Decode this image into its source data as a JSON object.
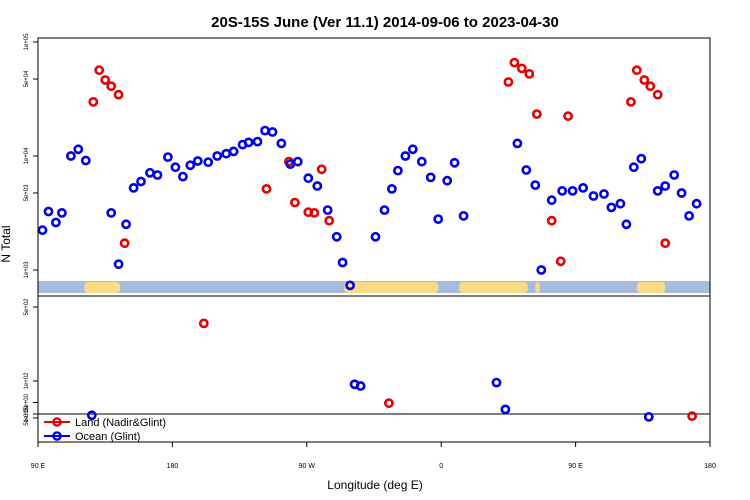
{
  "chart_data": {
    "type": "scatter",
    "title": "20S-15S June (Ver 11.1)   2014-09-06 to 2023-04-30",
    "xlabel": "Longitude (deg E)",
    "ylabel": "N Total",
    "x_ticks": [
      {
        "value": 90,
        "label": "90 E"
      },
      {
        "value": 180,
        "label": "180"
      },
      {
        "value": 270,
        "label": "90 W"
      },
      {
        "value": 360,
        "label": "0"
      },
      {
        "value": 450,
        "label": "90 E"
      },
      {
        "value": 540,
        "label": "180"
      }
    ],
    "xlim": [
      90,
      540
    ],
    "y_scale": "log",
    "ylim": [
      0.7,
      100000
    ],
    "y_ticks": [
      {
        "value": 0.5,
        "label": "5e-01"
      },
      {
        "value": 1,
        "label": "1e+00"
      },
      {
        "value": 5,
        "label": "5e+00"
      },
      {
        "value": 100,
        "label": "1e+02"
      },
      {
        "value": 500,
        "label": "5e+02"
      },
      {
        "value": 1000,
        "label": "1e+03"
      },
      {
        "value": 5000,
        "label": "5e+03"
      },
      {
        "value": 10000,
        "label": "1e+04"
      },
      {
        "value": 50000,
        "label": "5e+04"
      },
      {
        "value": 100000,
        "label": "1e+05"
      }
    ],
    "legend": {
      "placement": "bottom-left"
    },
    "series": [
      {
        "name": "Land (Nadir&Glint)",
        "color": "#e60000",
        "points": [
          [
            127,
            31000
          ],
          [
            131,
            59000
          ],
          [
            135,
            49000
          ],
          [
            139,
            43000
          ],
          [
            144,
            36000
          ],
          [
            148,
            1750
          ],
          [
            201,
            350
          ],
          [
            243,
            5400
          ],
          [
            258,
            9000
          ],
          [
            262,
            4100
          ],
          [
            271,
            3350
          ],
          [
            275,
            3300
          ],
          [
            280,
            7800
          ],
          [
            285,
            2800
          ],
          [
            325,
            4.5
          ],
          [
            405,
            47000
          ],
          [
            409,
            68000
          ],
          [
            414,
            61000
          ],
          [
            419,
            55000
          ],
          [
            424,
            24000
          ],
          [
            434,
            2800
          ],
          [
            440,
            1200
          ],
          [
            445,
            23000
          ],
          [
            487,
            31000
          ],
          [
            491,
            59000
          ],
          [
            496,
            49000
          ],
          [
            500,
            43000
          ],
          [
            505,
            36000
          ],
          [
            510,
            1750
          ],
          [
            528,
            0.7
          ]
        ]
      },
      {
        "name": "Ocean (Glint)",
        "color": "#0000e6",
        "points": [
          [
            93,
            2300
          ],
          [
            97,
            3400
          ],
          [
            102,
            2700
          ],
          [
            106,
            3300
          ],
          [
            112,
            10000
          ],
          [
            117,
            11500
          ],
          [
            122,
            9200
          ],
          [
            126,
            0.8
          ],
          [
            139,
            3300
          ],
          [
            144,
            1130
          ],
          [
            149,
            2600
          ],
          [
            154,
            5500
          ],
          [
            159,
            6200
          ],
          [
            165,
            7300
          ],
          [
            170,
            7000
          ],
          [
            177,
            9800
          ],
          [
            182,
            8100
          ],
          [
            187,
            6800
          ],
          [
            192,
            8400
          ],
          [
            197,
            9100
          ],
          [
            204,
            8900
          ],
          [
            210,
            10000
          ],
          [
            216,
            10500
          ],
          [
            221,
            11000
          ],
          [
            227,
            12700
          ],
          [
            231,
            13300
          ],
          [
            237,
            13500
          ],
          [
            242,
            17000
          ],
          [
            247,
            16500
          ],
          [
            253,
            13000
          ],
          [
            259,
            8600
          ],
          [
            264,
            9000
          ],
          [
            271,
            6600
          ],
          [
            277,
            5700
          ],
          [
            284,
            3500
          ],
          [
            290,
            2000
          ],
          [
            294,
            1170
          ],
          [
            299,
            750
          ],
          [
            302,
            63
          ],
          [
            306,
            50
          ],
          [
            316,
            2000
          ],
          [
            322,
            3500
          ],
          [
            327,
            5400
          ],
          [
            331,
            7600
          ],
          [
            336,
            10000
          ],
          [
            341,
            11500
          ],
          [
            347,
            9000
          ],
          [
            353,
            6700
          ],
          [
            358,
            2900
          ],
          [
            364,
            6300
          ],
          [
            369,
            8800
          ],
          [
            375,
            3100
          ],
          [
            397,
            80
          ],
          [
            403,
            1.9
          ],
          [
            411,
            13000
          ],
          [
            417,
            7700
          ],
          [
            423,
            5800
          ],
          [
            427,
            1000
          ],
          [
            434,
            4300
          ],
          [
            441,
            5200
          ],
          [
            448,
            5200
          ],
          [
            455,
            5500
          ],
          [
            462,
            4700
          ],
          [
            469,
            4900
          ],
          [
            474,
            3700
          ],
          [
            480,
            4000
          ],
          [
            484,
            2600
          ],
          [
            489,
            8100
          ],
          [
            494,
            9500
          ],
          [
            499,
            0.6
          ],
          [
            505,
            5200
          ],
          [
            510,
            5700
          ],
          [
            516,
            7000
          ],
          [
            521,
            5000
          ],
          [
            526,
            3100
          ],
          [
            531,
            4000
          ]
        ]
      }
    ],
    "land_strip_ranges": [
      [
        121,
        145
      ],
      [
        295,
        358
      ],
      [
        372,
        418
      ],
      [
        423,
        426
      ],
      [
        491,
        510
      ]
    ]
  }
}
